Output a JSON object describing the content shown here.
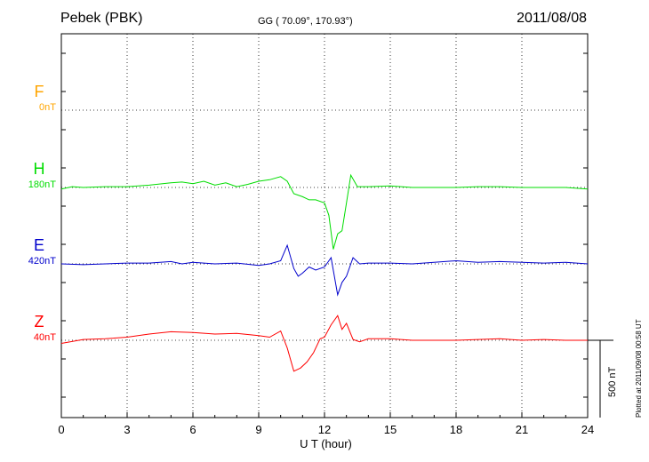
{
  "header": {
    "station": "Pebek (PBK)",
    "coords": "GG ( 70.09°, 170.93°)",
    "date": "2011/08/08"
  },
  "footer": {
    "plotted": "Plotted at 2011/09/08 00:58 UT",
    "scale_label": "500 nT"
  },
  "chart_data": {
    "type": "line",
    "title": "Pebek (PBK)",
    "xlabel": "U T (hour)",
    "ylabel": "",
    "xlim": [
      0,
      24
    ],
    "xticks": [
      "0",
      "3",
      "6",
      "9",
      "12",
      "15",
      "18",
      "21",
      "24"
    ],
    "grid": true,
    "scale_bar_nT": 500,
    "series": [
      {
        "name": "F",
        "offset_label": "0nT",
        "color": "#ffa500",
        "x": [],
        "y": []
      },
      {
        "name": "H",
        "offset_label": "180nT",
        "color": "#00dd00",
        "x": [
          0,
          0.5,
          1,
          2,
          3,
          4,
          5,
          5.5,
          6,
          6.5,
          7,
          7.5,
          8,
          8.5,
          9,
          9.5,
          10,
          10.3,
          10.6,
          11,
          11.3,
          11.6,
          12,
          12.2,
          12.4,
          12.6,
          12.8,
          13,
          13.2,
          13.5,
          14,
          15,
          16,
          17,
          18,
          19,
          20,
          21,
          22,
          23,
          24
        ],
        "y": [
          -10,
          5,
          0,
          5,
          5,
          15,
          30,
          35,
          25,
          40,
          15,
          30,
          5,
          20,
          40,
          50,
          70,
          40,
          -40,
          -60,
          -80,
          -80,
          -100,
          -180,
          -400,
          -300,
          -280,
          -100,
          80,
          5,
          5,
          10,
          0,
          0,
          0,
          5,
          5,
          0,
          0,
          0,
          -10
        ]
      },
      {
        "name": "E",
        "offset_label": "420nT",
        "color": "#0000cc",
        "x": [
          0,
          1,
          2,
          3,
          4,
          5,
          5.5,
          6,
          7,
          8,
          9,
          9.5,
          10,
          10.3,
          10.6,
          10.8,
          11,
          11.3,
          11.6,
          12,
          12.3,
          12.6,
          12.8,
          13,
          13.3,
          13.6,
          14,
          15,
          16,
          17,
          18,
          19,
          20,
          21,
          22,
          23,
          24
        ],
        "y": [
          0,
          -5,
          0,
          5,
          5,
          15,
          0,
          10,
          0,
          5,
          -10,
          0,
          20,
          120,
          -30,
          -80,
          -60,
          -20,
          -40,
          -20,
          40,
          -200,
          -120,
          -80,
          40,
          0,
          5,
          5,
          0,
          10,
          20,
          10,
          15,
          10,
          5,
          10,
          0
        ]
      },
      {
        "name": "Z",
        "offset_label": "40nT",
        "color": "#ff0000",
        "x": [
          0,
          1,
          2,
          3,
          4,
          5,
          6,
          7,
          8,
          9,
          9.5,
          10,
          10.3,
          10.6,
          10.9,
          11.2,
          11.5,
          11.8,
          12,
          12.3,
          12.6,
          12.8,
          13,
          13.3,
          13.6,
          14,
          15,
          16,
          17,
          18,
          19,
          20,
          21,
          22,
          23,
          24
        ],
        "y": [
          -20,
          5,
          10,
          20,
          40,
          55,
          50,
          40,
          45,
          30,
          20,
          60,
          -50,
          -200,
          -180,
          -140,
          -80,
          10,
          20,
          100,
          160,
          70,
          110,
          5,
          -10,
          10,
          10,
          0,
          0,
          0,
          5,
          10,
          0,
          5,
          0,
          0
        ]
      }
    ]
  }
}
